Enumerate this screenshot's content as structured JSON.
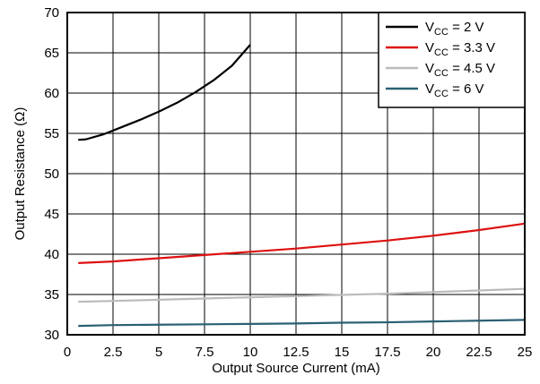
{
  "chart_data": {
    "type": "line",
    "xlabel": "Output Source Current (mA)",
    "ylabel": "Output Resistance (Ω)",
    "xlim": [
      0,
      25
    ],
    "ylim": [
      30,
      70
    ],
    "xticks": [
      "0",
      "2.5",
      "5",
      "7.5",
      "10",
      "12.5",
      "15",
      "17.5",
      "20",
      "22.5",
      "25"
    ],
    "yticks": [
      "30",
      "35",
      "40",
      "45",
      "50",
      "55",
      "60",
      "65",
      "70"
    ],
    "grid": true,
    "legend_position": "top-right",
    "series": [
      {
        "name": "VCC = 2 V",
        "label_main": "V",
        "label_sub": "CC",
        "label_rest": " = 2 V",
        "color": "#000000",
        "points": [
          [
            0.6,
            54.2
          ],
          [
            1.0,
            54.25
          ],
          [
            2.0,
            54.9
          ],
          [
            3.0,
            55.8
          ],
          [
            4.0,
            56.7
          ],
          [
            5.0,
            57.7
          ],
          [
            6.0,
            58.8
          ],
          [
            7.0,
            60.1
          ],
          [
            8.0,
            61.6
          ],
          [
            9.0,
            63.4
          ],
          [
            10.0,
            66.0
          ]
        ]
      },
      {
        "name": "VCC = 3.3 V",
        "label_main": "V",
        "label_sub": "CC",
        "label_rest": " = 3.3 V",
        "color": "#dd1111",
        "points": [
          [
            0.6,
            38.9
          ],
          [
            2.5,
            39.1
          ],
          [
            5.0,
            39.5
          ],
          [
            7.5,
            39.9
          ],
          [
            10.0,
            40.3
          ],
          [
            12.5,
            40.7
          ],
          [
            15.0,
            41.2
          ],
          [
            17.5,
            41.7
          ],
          [
            20.0,
            42.3
          ],
          [
            22.5,
            43.0
          ],
          [
            25.0,
            43.8
          ]
        ]
      },
      {
        "name": "VCC = 4.5 V",
        "label_main": "V",
        "label_sub": "CC",
        "label_rest": " = 4.5 V",
        "color": "#bbbbbb",
        "points": [
          [
            0.6,
            34.1
          ],
          [
            2.5,
            34.2
          ],
          [
            5.0,
            34.35
          ],
          [
            7.5,
            34.5
          ],
          [
            10.0,
            34.65
          ],
          [
            12.5,
            34.8
          ],
          [
            15.0,
            34.95
          ],
          [
            17.5,
            35.1
          ],
          [
            20.0,
            35.3
          ],
          [
            22.5,
            35.5
          ],
          [
            25.0,
            35.7
          ]
        ]
      },
      {
        "name": "VCC = 6 V",
        "label_main": "V",
        "label_sub": "CC",
        "label_rest": " = 6 V",
        "color": "#2a6073",
        "points": [
          [
            0.6,
            31.1
          ],
          [
            2.5,
            31.2
          ],
          [
            5.0,
            31.25
          ],
          [
            7.5,
            31.3
          ],
          [
            10.0,
            31.35
          ],
          [
            12.5,
            31.4
          ],
          [
            15.0,
            31.5
          ],
          [
            17.5,
            31.55
          ],
          [
            20.0,
            31.65
          ],
          [
            22.5,
            31.75
          ],
          [
            25.0,
            31.85
          ]
        ]
      }
    ]
  }
}
